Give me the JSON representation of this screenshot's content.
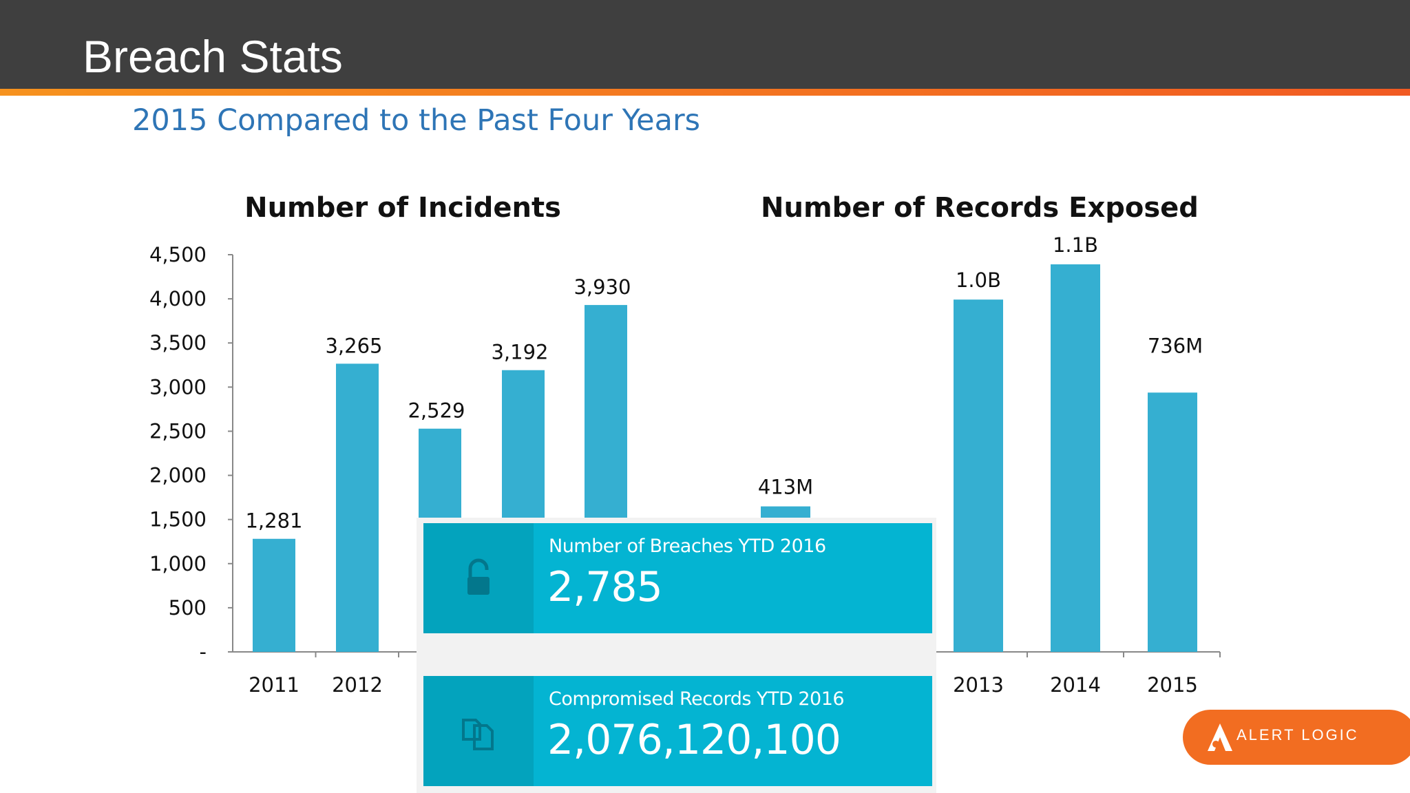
{
  "slide": {
    "title": "Breach Stats",
    "subtitle": "2015 Compared to the Past Four Years"
  },
  "colors": {
    "bar": "#35afd1",
    "header": "#3f3f3f",
    "accent_orange": "#f26d21",
    "card": "#04b4d2"
  },
  "chart_data": [
    {
      "type": "bar",
      "title": "Number of Incidents",
      "categories": [
        "2011",
        "2012",
        "2013",
        "2014",
        "2015"
      ],
      "values": [
        1281,
        3265,
        2529,
        3192,
        3930
      ],
      "data_labels": [
        "1,281",
        "3,265",
        "2,529",
        "3,192",
        "3,930"
      ],
      "ylim": [
        0,
        4500
      ],
      "yticks": [
        0,
        500,
        1000,
        1500,
        2000,
        2500,
        3000,
        3500,
        4000,
        4500
      ],
      "ytick_labels": [
        "-",
        "500",
        "1,000",
        "1,500",
        "2,000",
        "2,500",
        "3,000",
        "3,500",
        "4,000",
        "4,500"
      ],
      "visible_category_labels": [
        "2011",
        "2012"
      ],
      "grid": false
    },
    {
      "type": "bar",
      "title": "Number of  Records Exposed",
      "categories": [
        "2011",
        "2012",
        "2013",
        "2014",
        "2015"
      ],
      "values": [
        413,
        null,
        1000,
        1100,
        736
      ],
      "value_unit": "millions",
      "data_labels": [
        "413M",
        "",
        "1.0B",
        "1.1B",
        "736M"
      ],
      "visible_category_labels": [
        "2013",
        "2014",
        "2015"
      ],
      "grid": false
    }
  ],
  "cards": [
    {
      "label": "Number of Breaches YTD 2016",
      "value": "2,785",
      "icon": "unlock-icon"
    },
    {
      "label": "Compromised Records YTD 2016",
      "value": "2,076,120,100",
      "icon": "copy-documents-icon"
    }
  ],
  "logo": {
    "text": "ALERT LOGIC"
  }
}
